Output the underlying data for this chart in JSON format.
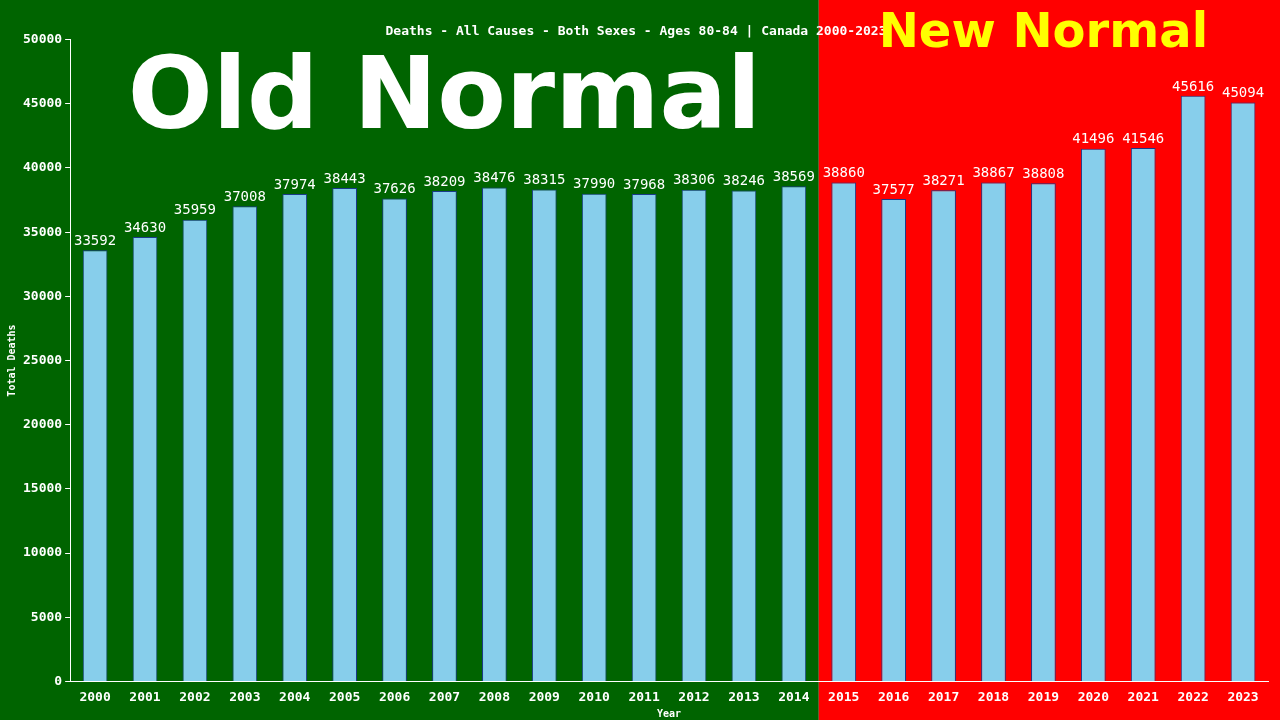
{
  "chart_data": {
    "type": "bar",
    "title": "Deaths - All Causes - Both Sexes - Ages 80-84 | Canada 2000-2023",
    "xlabel": "Year",
    "ylabel": "Total Deaths",
    "categories": [
      "2000",
      "2001",
      "2002",
      "2003",
      "2004",
      "2005",
      "2006",
      "2007",
      "2008",
      "2009",
      "2010",
      "2011",
      "2012",
      "2013",
      "2014",
      "2015",
      "2016",
      "2017",
      "2018",
      "2019",
      "2020",
      "2021",
      "2022",
      "2023"
    ],
    "values": [
      33592,
      34630,
      35959,
      37008,
      37974,
      38443,
      37626,
      38209,
      38476,
      38315,
      37990,
      37968,
      38306,
      38246,
      38569,
      38860,
      37577,
      38271,
      38867,
      38808,
      41496,
      41546,
      45616,
      45094
    ],
    "color": "#87ceeb",
    "data_labels": true,
    "grid": false,
    "legend": false,
    "ylim": [
      0,
      50000
    ],
    "yticks": [
      0,
      5000,
      10000,
      15000,
      20000,
      25000,
      30000,
      35000,
      40000,
      45000,
      50000
    ],
    "bands": [
      {
        "axis": "x",
        "from": "2000",
        "to": "2014",
        "label": "Old Normal",
        "color": "#006400"
      },
      {
        "axis": "x",
        "from": "2015",
        "to": "2023",
        "label": "New Normal",
        "color": "#ff0000"
      }
    ]
  }
}
